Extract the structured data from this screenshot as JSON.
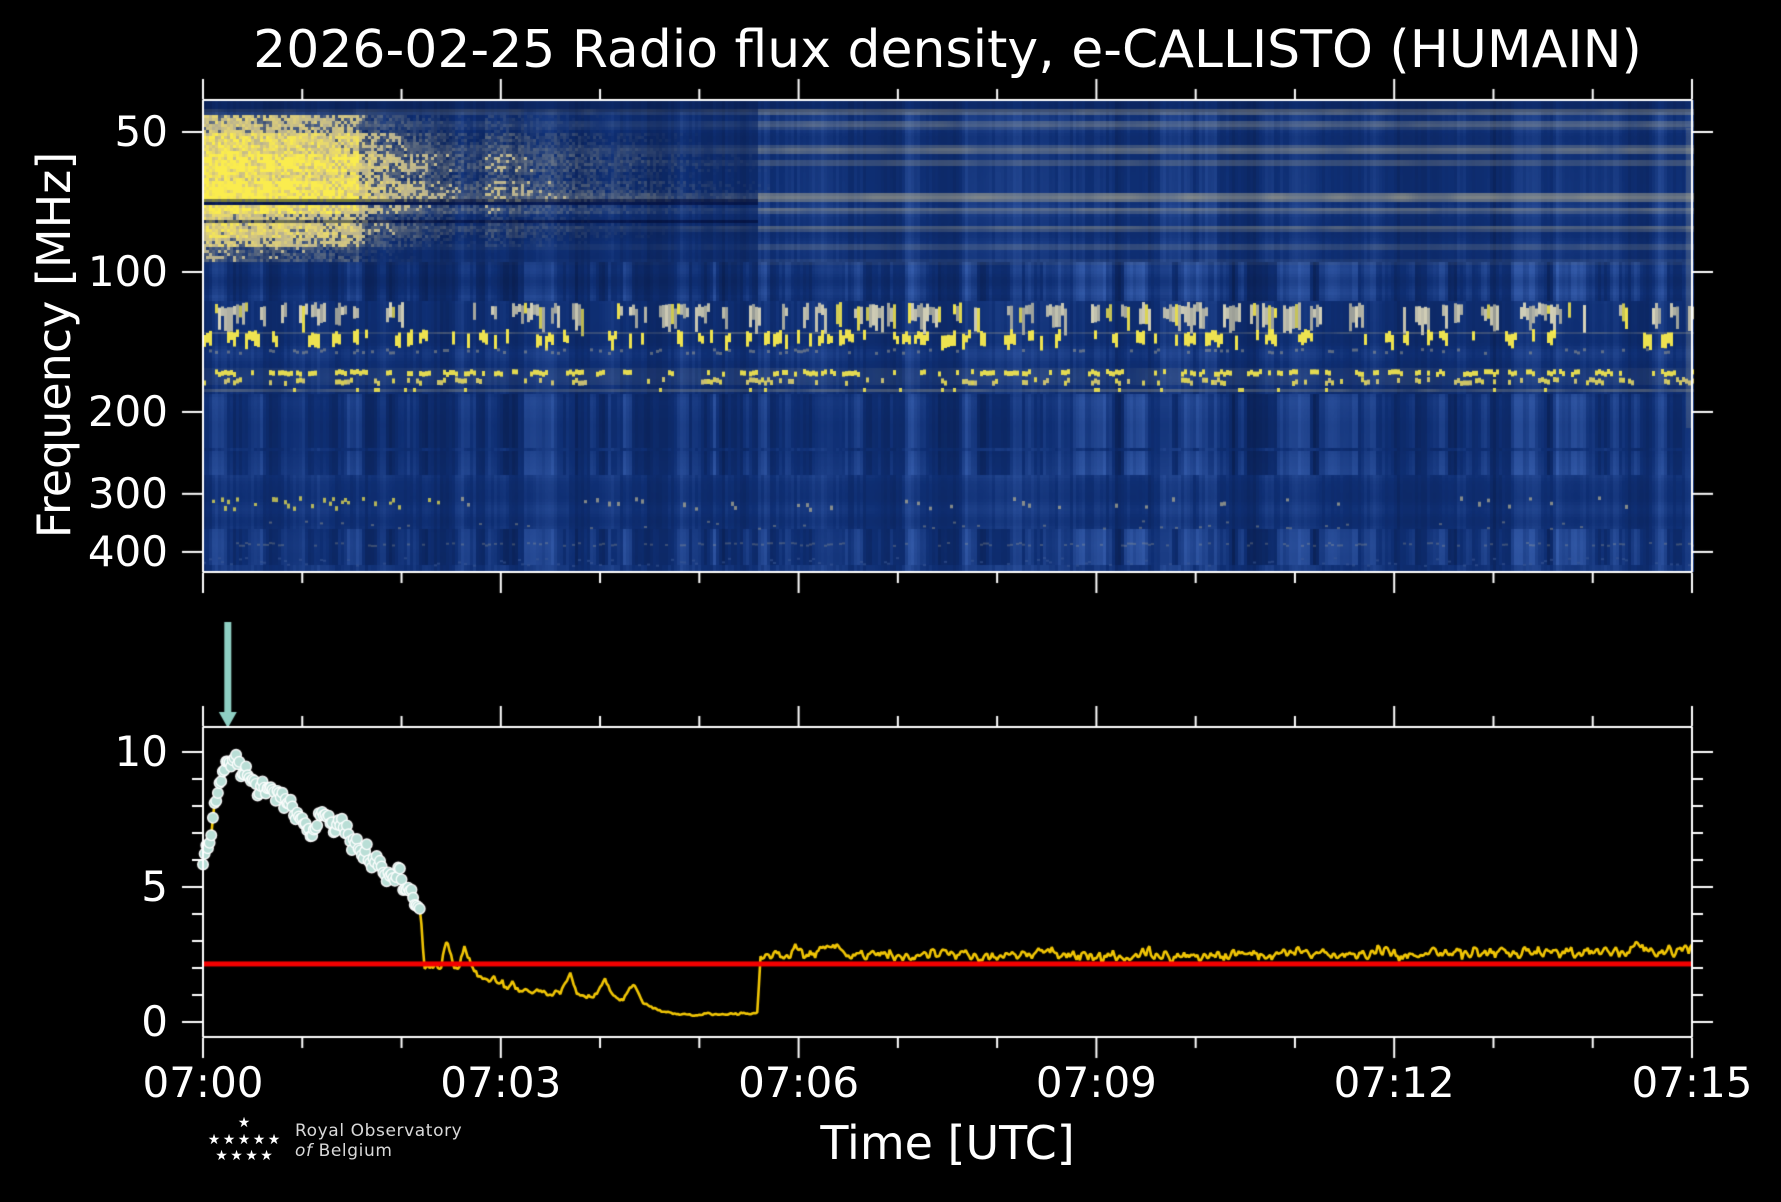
{
  "figure": {
    "title": "2026-02-25 Radio flux density, e-CALLISTO (HUMAIN)",
    "background": "#000000",
    "text_color": "#ffffff"
  },
  "time_axis": {
    "label": "Time [UTC]",
    "tick_labels": [
      "07:00",
      "07:03",
      "07:06",
      "07:09",
      "07:12",
      "07:15"
    ],
    "tick_seconds": [
      0,
      180,
      360,
      540,
      720,
      900
    ],
    "minor_interval_s": 60,
    "duration_s": 900
  },
  "logo": {
    "line1": "Royal Observatory",
    "line2_italic": "of",
    "line2": "Belgium",
    "star_icon": "star-icon",
    "star_rows": [
      1,
      5,
      4
    ]
  },
  "chart_data": [
    {
      "type": "heatmap",
      "panel": "dynamic spectrum",
      "ylabel": "Frequency [MHz]",
      "y_scale": "log inverted (low frequency on top)",
      "y_tick_labels": [
        "50",
        "100",
        "200",
        "300",
        "400"
      ],
      "y_tick_values_mhz": [
        50,
        100,
        200,
        300,
        400
      ],
      "ylim_mhz": [
        43,
        445
      ],
      "x_range": [
        "07:00",
        "07:15"
      ],
      "colors": {
        "background_blue_dark": "#051030",
        "background_blue": "#0f2f74",
        "background_blue_light": "#3a62b2",
        "tan": "#b6b092",
        "pale_yellow": "#e2d278",
        "bright_yellow": "#faec4e",
        "white_blocks": "#e1dcc0"
      },
      "solar_burst": {
        "description": "bright type-IV like emission at low frequencies starting 07:00, fading by ~07:05:40",
        "start_s": 0,
        "bright_until_s": 75,
        "fade_until_s": 345,
        "freq_extent_mhz": [
          46,
          96
        ],
        "profile": [
          [
            46,
            50,
            0.45
          ],
          [
            50,
            55.5,
            0.7
          ],
          [
            55.5,
            61,
            0.95
          ],
          [
            61,
            63.5,
            0.75
          ],
          [
            63.5,
            70.2,
            1.05
          ],
          [
            71.5,
            75,
            0.8
          ],
          [
            75,
            78,
            0.5
          ],
          [
            79,
            84,
            0.6
          ],
          [
            84,
            89,
            0.45
          ],
          [
            89,
            95,
            0.25
          ]
        ],
        "dark_gap_lines_mhz": [
          70.7,
          78.1
        ]
      },
      "mode_change_s": 336,
      "quiet_stripes": [
        {
          "mhz": 45.3,
          "h": 6,
          "pre": 0.25,
          "post": 0.42
        },
        {
          "mhz": 48.2,
          "h": 8,
          "pre": 0.15,
          "post": 0.35
        },
        {
          "mhz": 54.7,
          "h": 9,
          "pre": 0.2,
          "post": 0.45
        },
        {
          "mhz": 58.3,
          "h": 6,
          "pre": 0.12,
          "post": 0.3
        },
        {
          "mhz": 69.0,
          "h": 11,
          "pre": 0.25,
          "post": 0.62
        },
        {
          "mhz": 73.6,
          "h": 6,
          "pre": 0.15,
          "post": 0.42
        },
        {
          "mhz": 80.5,
          "h": 6,
          "pre": 0.18,
          "post": 0.38
        },
        {
          "mhz": 88.4,
          "h": 6,
          "pre": 0.08,
          "post": 0.24
        },
        {
          "mhz": 95.2,
          "h": 4,
          "pre": 0.05,
          "post": 0.14
        }
      ],
      "rfi_bands": [
        {
          "mhz": [
            114,
            131
          ],
          "style": "pale blocks, persistent"
        },
        {
          "mhz": [
            132,
            146
          ],
          "style": "bright yellow dashes, persistent"
        },
        {
          "mhz": [
            150,
            156
          ],
          "style": "faint small dashes"
        },
        {
          "mhz": [
            160,
            177
          ],
          "style": "bright yellow dash rows"
        },
        {
          "mhz": [
            178,
            181
          ],
          "style": "faint continuous line with dots"
        },
        {
          "mhz": [
            238,
            272
          ],
          "style": "brighter blue vertical texture"
        },
        {
          "mhz": [
            295,
            335
          ],
          "style": "sparse dots, brighter before 07:02:30"
        },
        {
          "mhz": [
            340,
            360
          ],
          "style": "very faint dots"
        },
        {
          "mhz": [
            378,
            384
          ],
          "style": "faint broken line"
        }
      ]
    },
    {
      "type": "line",
      "panel": "flux light curve",
      "y_tick_values": [
        0,
        5,
        10
      ],
      "y_tick_labels": [
        "0",
        "5",
        "10"
      ],
      "y_minor_ticks": [
        1,
        2,
        3,
        4,
        6,
        7,
        8,
        9
      ],
      "ylim": [
        -0.55,
        10.9
      ],
      "threshold": 2.15,
      "threshold_color": "#f40000",
      "line_color": "#f0c505",
      "marker": {
        "until_s": 131,
        "fill": "#b9ded6",
        "edge": "#ffffff",
        "radius_px": 5.3
      },
      "arrow_annotation": {
        "t_s": 15,
        "color": "#8ecfc3",
        "direction": "down"
      },
      "series": [
        {
          "name": "radio flux density",
          "points_t_v_noise": [
            [
              0,
              5.6,
              0.3
            ],
            [
              4,
              6.8,
              0.3
            ],
            [
              8,
              8.2,
              0.4
            ],
            [
              12,
              9.4,
              0.4
            ],
            [
              16,
              9.9,
              0.35
            ],
            [
              22,
              9.4,
              0.4
            ],
            [
              28,
              9.1,
              0.45
            ],
            [
              34,
              8.6,
              0.5
            ],
            [
              40,
              8.9,
              0.5
            ],
            [
              47,
              8.6,
              0.5
            ],
            [
              54,
              7.9,
              0.45
            ],
            [
              60,
              7.4,
              0.45
            ],
            [
              66,
              7.2,
              0.45
            ],
            [
              72,
              7.7,
              0.4
            ],
            [
              79,
              7.4,
              0.45
            ],
            [
              86,
              7.1,
              0.4
            ],
            [
              93,
              6.6,
              0.4
            ],
            [
              100,
              6.1,
              0.35
            ],
            [
              107,
              5.8,
              0.35
            ],
            [
              113,
              5.3,
              0.3
            ],
            [
              118,
              5.5,
              0.3
            ],
            [
              123,
              5.0,
              0.3
            ],
            [
              127,
              4.6,
              0.25
            ],
            [
              131,
              4.2,
              0.2
            ],
            [
              134,
              2.1,
              0.2
            ],
            [
              139,
              1.9,
              0.2
            ],
            [
              144,
              2.2,
              0.25
            ],
            [
              147,
              3.1,
              0.15
            ],
            [
              150,
              2.5,
              0.2
            ],
            [
              154,
              1.9,
              0.15
            ],
            [
              158,
              2.6,
              0.2
            ],
            [
              162,
              2.1,
              0.15
            ],
            [
              166,
              1.7,
              0.15
            ],
            [
              172,
              1.6,
              0.15
            ],
            [
              180,
              1.5,
              0.18
            ],
            [
              188,
              1.3,
              0.15
            ],
            [
              196,
              1.1,
              0.12
            ],
            [
              204,
              1.2,
              0.15
            ],
            [
              210,
              1.0,
              0.1
            ],
            [
              216,
              1.1,
              0.12
            ],
            [
              222,
              1.8,
              0.12
            ],
            [
              226,
              1.1,
              0.1
            ],
            [
              232,
              0.9,
              0.1
            ],
            [
              238,
              1.0,
              0.12
            ],
            [
              243,
              1.6,
              0.1
            ],
            [
              248,
              0.9,
              0.1
            ],
            [
              254,
              0.8,
              0.08
            ],
            [
              260,
              1.4,
              0.1
            ],
            [
              265,
              0.8,
              0.08
            ],
            [
              270,
              0.55,
              0.06
            ],
            [
              276,
              0.4,
              0.05
            ],
            [
              284,
              0.32,
              0.04
            ],
            [
              295,
              0.27,
              0.04
            ],
            [
              305,
              0.3,
              0.04
            ],
            [
              315,
              0.26,
              0.03
            ],
            [
              324,
              0.32,
              0.04
            ],
            [
              332,
              0.3,
              0.03
            ],
            [
              335,
              0.35,
              0.03
            ],
            [
              337,
              2.3,
              0.15
            ],
            [
              342,
              2.4,
              0.2
            ],
            [
              350,
              2.5,
              0.22
            ],
            [
              360,
              2.6,
              0.25
            ],
            [
              370,
              2.45,
              0.22
            ],
            [
              378,
              2.9,
              0.2
            ],
            [
              385,
              2.6,
              0.22
            ],
            [
              395,
              2.4,
              0.2
            ],
            [
              410,
              2.5,
              0.22
            ],
            [
              430,
              2.45,
              0.22
            ],
            [
              450,
              2.55,
              0.25
            ],
            [
              470,
              2.4,
              0.2
            ],
            [
              490,
              2.5,
              0.22
            ],
            [
              510,
              2.6,
              0.25
            ],
            [
              530,
              2.45,
              0.22
            ],
            [
              550,
              2.5,
              0.25
            ],
            [
              570,
              2.55,
              0.22
            ],
            [
              590,
              2.4,
              0.2
            ],
            [
              610,
              2.55,
              0.25
            ],
            [
              630,
              2.5,
              0.22
            ],
            [
              650,
              2.45,
              0.22
            ],
            [
              670,
              2.55,
              0.25
            ],
            [
              690,
              2.5,
              0.22
            ],
            [
              710,
              2.6,
              0.25
            ],
            [
              730,
              2.45,
              0.22
            ],
            [
              750,
              2.5,
              0.25
            ],
            [
              770,
              2.55,
              0.22
            ],
            [
              790,
              2.5,
              0.22
            ],
            [
              810,
              2.6,
              0.25
            ],
            [
              830,
              2.55,
              0.25
            ],
            [
              850,
              2.6,
              0.25
            ],
            [
              865,
              2.75,
              0.25
            ],
            [
              880,
              2.6,
              0.25
            ],
            [
              900,
              2.65,
              0.25
            ]
          ]
        }
      ]
    }
  ]
}
